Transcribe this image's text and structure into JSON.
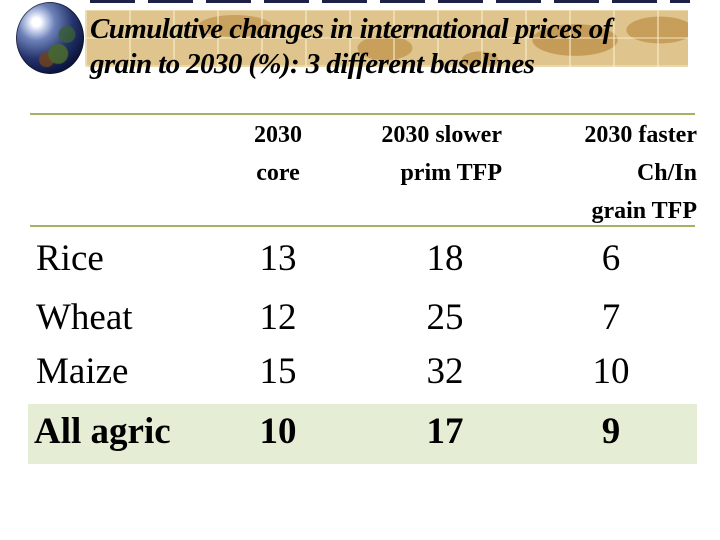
{
  "title": {
    "line1": "Cumulative changes in international prices of",
    "line2": "grain to 2030 (%): 3 different baselines"
  },
  "table": {
    "columns": [
      {
        "lines": [
          "2030",
          "core"
        ]
      },
      {
        "lines": [
          "2030 slower",
          "prim TFP"
        ]
      },
      {
        "lines": [
          "2030 faster",
          "Ch/In",
          "grain TFP"
        ]
      }
    ],
    "rows": [
      {
        "label": "Rice",
        "values": [
          13,
          18,
          6
        ],
        "highlight": false
      },
      {
        "label": "Wheat",
        "values": [
          12,
          25,
          7
        ],
        "highlight": false
      },
      {
        "label": "Maize",
        "values": [
          15,
          32,
          10
        ],
        "highlight": false
      },
      {
        "label": "All agric",
        "values": [
          10,
          17,
          9
        ],
        "highlight": true
      }
    ]
  },
  "icons": {
    "globe": "globe-earth-logo"
  },
  "colors": {
    "title_band_tan": "#dfc48d",
    "map_pattern_tan": "#c49a54",
    "rule_olive": "#a6b161",
    "highlight_green": "#e5edd5",
    "dash_navy": "#1d2145",
    "text": "#000000"
  }
}
